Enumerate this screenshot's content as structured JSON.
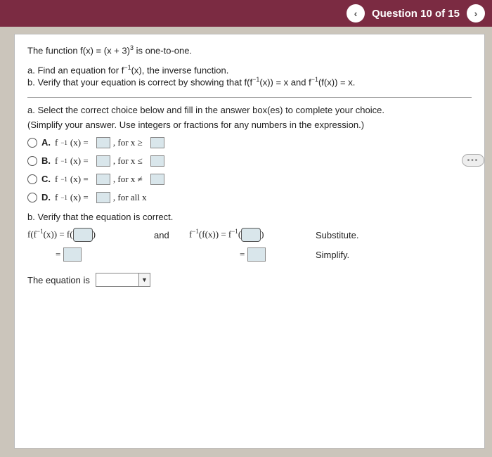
{
  "header": {
    "prev": "‹",
    "next": "›",
    "title": "Question 10 of 15"
  },
  "problem": {
    "intro_pre": "The function f(x) = (x + 3)",
    "intro_exp": "3",
    "intro_post": " is one-to-one.",
    "a_pre": "a. Find an equation for f",
    "a_exp": "−1",
    "a_post": "(x), the inverse function.",
    "b_pre": "b. Verify that your equation is correct by showing that f(f",
    "b_exp1": "−1",
    "b_mid": "(x)) = x and f",
    "b_exp2": "−1",
    "b_post": "(f(x)) = x."
  },
  "dots": "•••",
  "partA": {
    "lead": "a. Select the correct choice below and fill in the answer box(es) to complete your choice.",
    "note": "(Simplify your answer. Use integers or fractions for any numbers in the expression.)",
    "choices": [
      {
        "letter": "A.",
        "pre": "f",
        "exp": "−1",
        "post": "(x) =",
        "cond": ", for x ≥",
        "trailing_box": true
      },
      {
        "letter": "B.",
        "pre": "f",
        "exp": "−1",
        "post": "(x) =",
        "cond": ", for x ≤",
        "trailing_box": true
      },
      {
        "letter": "C.",
        "pre": "f",
        "exp": "−1",
        "post": "(x) =",
        "cond": ", for x ≠",
        "trailing_box": true
      },
      {
        "letter": "D.",
        "pre": "f",
        "exp": "−1",
        "post": "(x) =",
        "cond": ", for all x",
        "trailing_box": false
      }
    ]
  },
  "partB": {
    "lead": "b. Verify that the equation is correct.",
    "lhs1_pre": "f(f",
    "lhs1_exp": "−1",
    "lhs1_post": "(x))  =  f(",
    "and": "and",
    "rhs1_pre": "f",
    "rhs1_exp": "−1",
    "rhs1_mid": "(f(x))  =  f",
    "rhs1_exp2": "−1",
    "rhs1_post": "(",
    "label_sub": "Substitute.",
    "eq": "=",
    "label_simp": "Simplify.",
    "last": "The equation is"
  }
}
